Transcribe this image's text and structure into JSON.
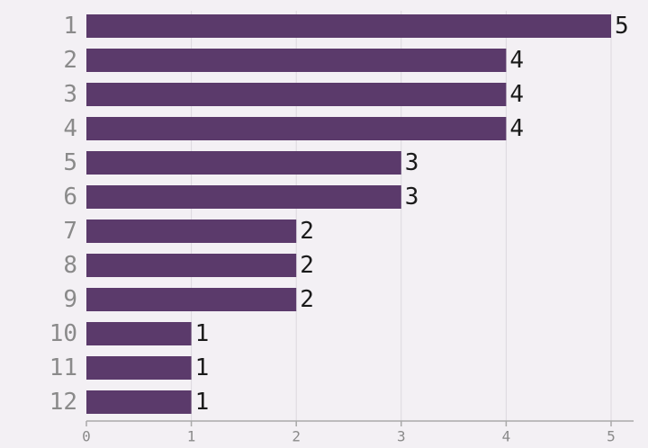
{
  "colors": {
    "background": "#f3f0f4",
    "bar": "#5b3a6b",
    "grid": "#dcd8de",
    "axis": "#a9a9a9",
    "category_text": "#8a8a8a",
    "value_text": "#1a1a1a",
    "tick_text": "#8a8a8a"
  },
  "chart_data": {
    "type": "bar",
    "orientation": "horizontal",
    "categories": [
      "1",
      "2",
      "3",
      "4",
      "5",
      "6",
      "7",
      "8",
      "9",
      "10",
      "11",
      "12"
    ],
    "values": [
      5,
      4,
      4,
      4,
      3,
      3,
      2,
      2,
      2,
      1,
      1,
      1
    ],
    "x_ticks": [
      "0",
      "1",
      "2",
      "3",
      "4",
      "5"
    ],
    "xlim": [
      0,
      5
    ],
    "grid": true,
    "show_value_labels": true
  }
}
